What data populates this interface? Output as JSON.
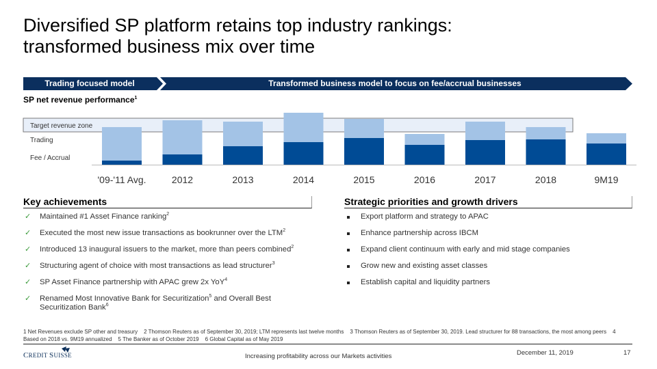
{
  "title": "Diversified SP platform retains top industry rankings: transformed business mix over time",
  "title_line1": "Diversified SP platform retains top industry rankings:",
  "title_line2": "transformed business mix over time",
  "banners": {
    "left": "Trading focused model",
    "right": "Transformed business model to focus on fee/accrual businesses",
    "color": "#0b2f5e"
  },
  "chart_title": "SP net revenue performance",
  "chart_title_note": "1",
  "chart_data": {
    "type": "bar",
    "stacked": true,
    "title": "SP net revenue performance",
    "categories": [
      "'09-'11 Avg.",
      "2012",
      "2013",
      "2014",
      "2015",
      "2016",
      "2017",
      "2018",
      "9M19"
    ],
    "series": [
      {
        "name": "Fee / Accrual",
        "color": "#004b95",
        "values": [
          6,
          15,
          27,
          33,
          39,
          29,
          36,
          37,
          31
        ]
      },
      {
        "name": "Trading",
        "color": "#a3c3e6",
        "values": [
          49,
          50,
          36,
          43,
          28,
          16,
          27,
          18,
          15
        ]
      }
    ],
    "target_zone": {
      "label": "Target revenue zone",
      "low": 48,
      "high": 68,
      "color": "#e8eff9"
    },
    "ylim": [
      0,
      80
    ],
    "xlabel": "",
    "ylabel": "",
    "grid": false,
    "unit": "relative index (no axis shown)"
  },
  "legend": {
    "target": "Target revenue zone",
    "trading": "Trading",
    "fee": "Fee / Accrual"
  },
  "key_achievements": {
    "heading": "Key achievements",
    "items": [
      {
        "text": "Maintained #1 Asset Finance ranking",
        "note": "2"
      },
      {
        "text": "Executed the most new issue transactions as bookrunner over the LTM",
        "note": "2"
      },
      {
        "text": "Introduced 13 inaugural issuers to the market, more than peers combined",
        "note": "2"
      },
      {
        "text": "Structuring agent of choice with most transactions as lead structurer",
        "note": "3"
      },
      {
        "text": "SP Asset Finance partnership with APAC grew 2x YoY",
        "note": "4"
      },
      {
        "text": "Renamed Most Innovative Bank for Securitization",
        "note": "5",
        "text2": " and Overall Best Securitization Bank",
        "note2": "6"
      }
    ],
    "marker": "✓"
  },
  "strategic_priorities": {
    "heading": "Strategic priorities and growth drivers",
    "items": [
      "Export platform and strategy to APAC",
      "Enhance partnership across IBCM",
      "Expand client continuum with early and mid stage companies",
      "Grow new and existing asset classes",
      "Establish capital and liquidity partners"
    ]
  },
  "footnotes": [
    "1  Net Revenues exclude SP other and treasury",
    "2 Thomson Reuters as of September 30, 2019; LTM represents last twelve months",
    "3 Thomson Reuters as of September 30, 2019. Lead structurer for 88 transactions, the most among peers",
    "4 Based on 2018 vs. 9M19 annualized",
    "5 The Banker as of October 2019",
    "6 Global Capital as of May 2019"
  ],
  "footer": {
    "logo_text": "Credit Suisse",
    "center": "Increasing profitability across our Markets activities",
    "date": "December 11, 2019",
    "page": "17"
  }
}
